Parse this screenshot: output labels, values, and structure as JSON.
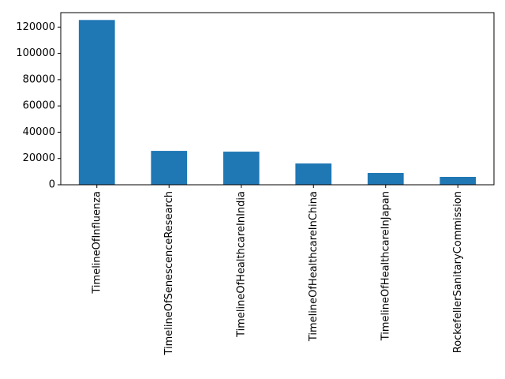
{
  "chart_data": {
    "type": "bar",
    "categories": [
      "TimelineOfInfluenza",
      "TimelineOfSenescenceResearch",
      "TimelineOfHealthcareInIndia",
      "TimelineOfHealthcareInChina",
      "TimelineOfHealthcareInJapan",
      "RockefellerSanitaryCommission"
    ],
    "values": [
      125400,
      25800,
      25200,
      16200,
      9000,
      6000
    ],
    "color": "#1f77b4",
    "ylim": [
      0,
      131000
    ],
    "yticks": [
      0,
      20000,
      40000,
      60000,
      80000,
      100000,
      120000
    ],
    "grid": false
  }
}
